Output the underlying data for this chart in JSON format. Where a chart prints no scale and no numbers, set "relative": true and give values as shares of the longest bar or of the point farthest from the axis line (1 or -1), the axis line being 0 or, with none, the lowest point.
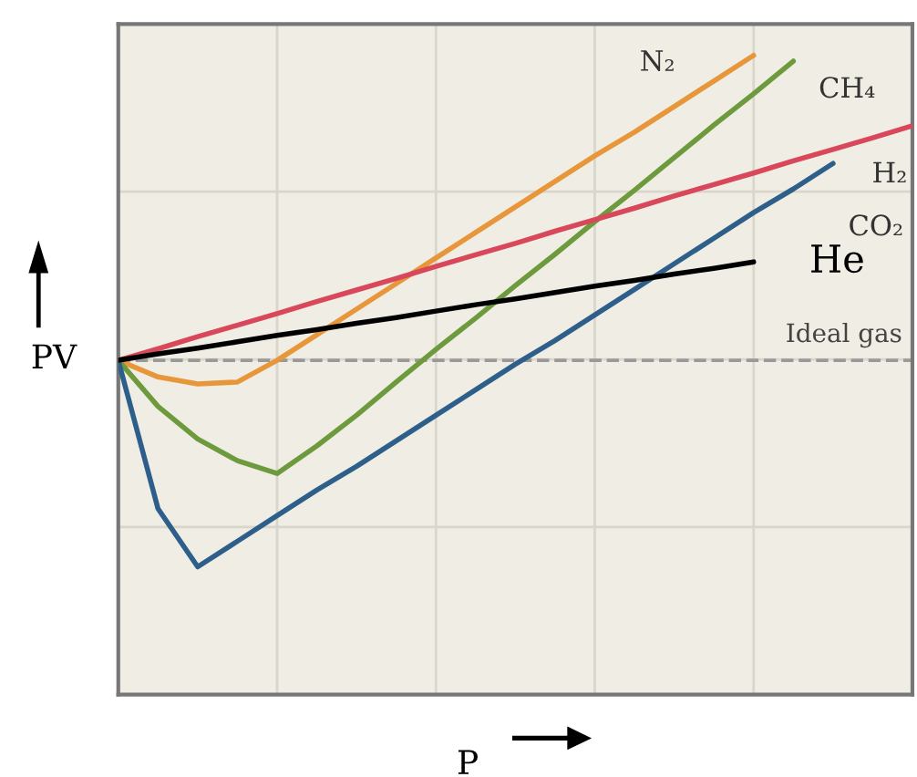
{
  "chart_data": {
    "type": "line",
    "relative": true,
    "xlabel": "P",
    "ylabel": "PV",
    "categories": [
      null,
      null,
      null,
      null,
      null,
      null,
      null,
      null,
      null,
      null,
      null,
      null,
      null,
      null,
      null,
      null,
      null,
      null,
      null,
      null,
      null
    ],
    "series": [
      {
        "name": "N₂",
        "color": "#e8963a",
        "values": [
          0.523,
          0.497,
          0.486,
          0.489,
          0.523,
          0.563,
          0.603,
          0.643,
          0.683,
          0.723,
          0.763,
          0.803,
          0.843,
          0.88,
          0.92,
          0.96,
          1.0,
          null,
          null,
          null,
          null
        ]
      },
      {
        "name": "CH₄",
        "color": "#6e9a3e",
        "values": [
          0.523,
          0.451,
          0.4,
          0.366,
          0.346,
          0.389,
          0.437,
          0.489,
          0.54,
          0.589,
          0.64,
          0.689,
          0.74,
          0.789,
          0.84,
          0.891,
          0.94,
          0.991,
          null,
          null,
          null
        ]
      },
      {
        "name": "H₂",
        "color": "#d9475a",
        "values": [
          0.523,
          0.541,
          0.56,
          0.578,
          0.596,
          0.615,
          0.633,
          0.651,
          0.67,
          0.688,
          0.706,
          0.725,
          0.743,
          0.761,
          0.78,
          0.798,
          0.816,
          0.835,
          0.853,
          0.871,
          0.89
        ]
      },
      {
        "name": "CO₂",
        "color": "#2e5f8a",
        "values": [
          0.523,
          0.291,
          0.2,
          0.24,
          0.28,
          0.32,
          0.357,
          0.397,
          0.437,
          0.477,
          0.517,
          0.554,
          0.594,
          0.634,
          0.674,
          0.714,
          0.754,
          0.791,
          0.831,
          null,
          null
        ]
      },
      {
        "name": "He",
        "color": "#000000",
        "values": [
          0.523,
          0.533,
          0.542,
          0.552,
          0.562,
          0.571,
          0.581,
          0.59,
          0.6,
          0.61,
          0.619,
          0.629,
          0.639,
          0.648,
          0.658,
          0.667,
          0.677,
          null,
          null,
          null,
          null
        ]
      }
    ],
    "ref_lines": [
      {
        "axis": "y",
        "value": 0.523,
        "label": "Ideal gas",
        "color": "#999999",
        "line_style": "dashed"
      }
    ],
    "grid": true,
    "line_style": "solid",
    "marker": "none"
  }
}
